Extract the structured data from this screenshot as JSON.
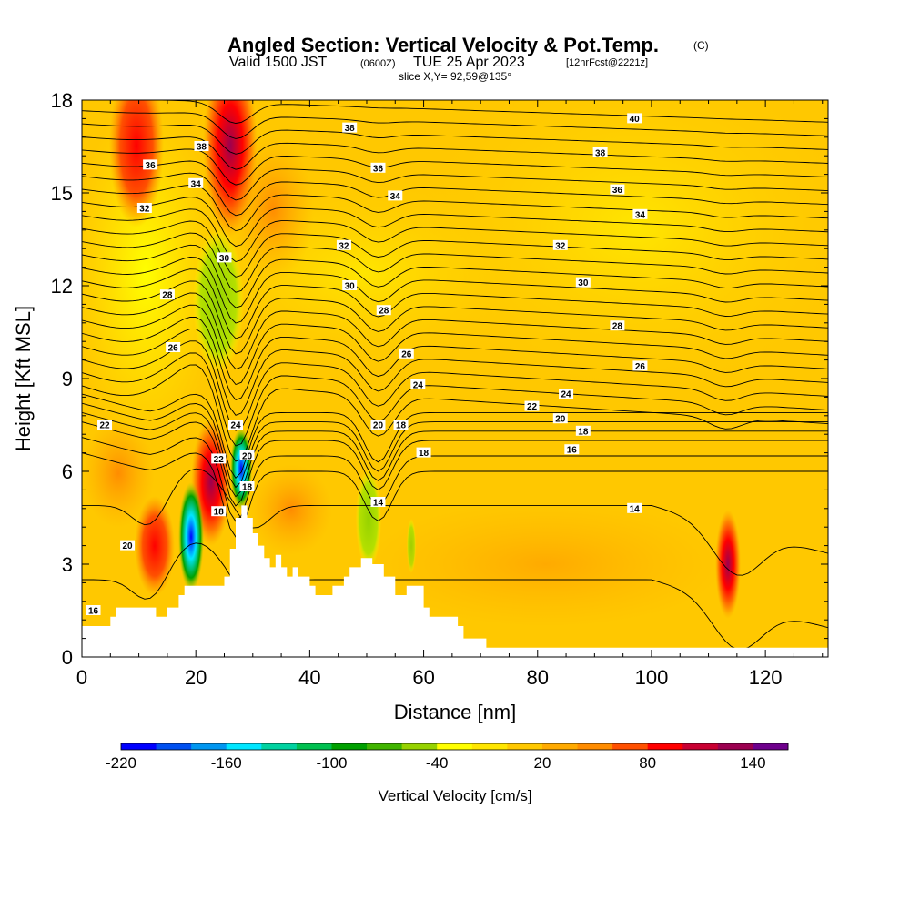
{
  "title": {
    "main": "Angled Section: Vertical Velocity & Pot.Temp.",
    "unit": "(C)",
    "valid_prefix": "Valid 1500 JST",
    "valid_utc": "(0600Z)",
    "valid_date": "TUE 25 Apr 2023",
    "forecast": "[12hrFcst@2221z]",
    "slice": "slice X,Y= 92,59@135°"
  },
  "colorbar": {
    "label": "Vertical Velocity [cm/s]",
    "min": -220,
    "max": 160,
    "step": 20,
    "tick_labels": [
      "-220",
      "-160",
      "-100",
      "-40",
      "20",
      "80",
      "140"
    ],
    "colors": [
      "#0000ff",
      "#0050f0",
      "#0096f0",
      "#00e6ff",
      "#00d2a0",
      "#00c050",
      "#00a000",
      "#40b400",
      "#96d200",
      "#ffff00",
      "#ffe600",
      "#ffc800",
      "#ffaa00",
      "#ff8c00",
      "#ff5000",
      "#ff0000",
      "#c80032",
      "#9b0050",
      "#6e008c"
    ]
  },
  "chart_data": {
    "type": "contour",
    "title": "Angled Section: Vertical Velocity & Pot.Temp.",
    "xlabel": "Distance [nm]",
    "ylabel": "Height [Kft MSL]",
    "xlim": [
      0,
      131
    ],
    "ylim": [
      0,
      18
    ],
    "x_ticks": [
      0,
      20,
      40,
      60,
      80,
      100,
      120
    ],
    "y_ticks": [
      0,
      3,
      6,
      9,
      12,
      15,
      18
    ],
    "terrain": [
      [
        0,
        1
      ],
      [
        5,
        1
      ],
      [
        5,
        1.3
      ],
      [
        6,
        1.3
      ],
      [
        6,
        1.6
      ],
      [
        13,
        1.6
      ],
      [
        13,
        1.3
      ],
      [
        15,
        1.3
      ],
      [
        15,
        1.6
      ],
      [
        17,
        1.6
      ],
      [
        17,
        2
      ],
      [
        18,
        2
      ],
      [
        18,
        2.3
      ],
      [
        25,
        2.3
      ],
      [
        25,
        2.6
      ],
      [
        26,
        2.6
      ],
      [
        26,
        3.5
      ],
      [
        27,
        3.5
      ],
      [
        27,
        4.5
      ],
      [
        28,
        4.5
      ],
      [
        28,
        4.9
      ],
      [
        29,
        4.9
      ],
      [
        29,
        4.5
      ],
      [
        30,
        4.5
      ],
      [
        30,
        4
      ],
      [
        31,
        4
      ],
      [
        31,
        3.6
      ],
      [
        32,
        3.6
      ],
      [
        32,
        3.2
      ],
      [
        33,
        3.2
      ],
      [
        33,
        2.9
      ],
      [
        34,
        2.9
      ],
      [
        34,
        3.3
      ],
      [
        35,
        3.3
      ],
      [
        35,
        2.9
      ],
      [
        36,
        2.9
      ],
      [
        36,
        2.6
      ],
      [
        37,
        2.6
      ],
      [
        37,
        2.9
      ],
      [
        38,
        2.9
      ],
      [
        38,
        2.6
      ],
      [
        40,
        2.6
      ],
      [
        40,
        2.3
      ],
      [
        41,
        2.3
      ],
      [
        41,
        2
      ],
      [
        44,
        2
      ],
      [
        44,
        2.3
      ],
      [
        46,
        2.3
      ],
      [
        46,
        2.6
      ],
      [
        47,
        2.6
      ],
      [
        47,
        2.9
      ],
      [
        49,
        2.9
      ],
      [
        49,
        3.2
      ],
      [
        51,
        3.2
      ],
      [
        51,
        3
      ],
      [
        53,
        3
      ],
      [
        53,
        2.6
      ],
      [
        55,
        2.6
      ],
      [
        55,
        2
      ],
      [
        57,
        2
      ],
      [
        57,
        2.3
      ],
      [
        60,
        2.3
      ],
      [
        60,
        1.6
      ],
      [
        61,
        1.6
      ],
      [
        61,
        1.3
      ],
      [
        66,
        1.3
      ],
      [
        66,
        1
      ],
      [
        67,
        1
      ],
      [
        67,
        0.6
      ],
      [
        71,
        0.6
      ],
      [
        71,
        0.3
      ],
      [
        131,
        0.3
      ],
      [
        131,
        0
      ]
    ],
    "pot_temp_contours": [
      {
        "level": "16",
        "labels": [
          {
            "x": 2,
            "y": 1.5
          }
        ]
      },
      {
        "level": "18",
        "labels": [
          {
            "x": 24,
            "y": 4.7
          },
          {
            "x": 29,
            "y": 5.5
          },
          {
            "x": 56,
            "y": 7.5
          },
          {
            "x": 60,
            "y": 6.6
          }
        ]
      },
      {
        "level": "14",
        "labels": [
          {
            "x": 52,
            "y": 5.0
          },
          {
            "x": 97,
            "y": 4.8
          }
        ]
      },
      {
        "level": "16",
        "labels": [
          {
            "x": 86,
            "y": 6.7
          }
        ]
      },
      {
        "level": "20",
        "labels": [
          {
            "x": 8,
            "y": 3.6
          },
          {
            "x": 29,
            "y": 6.5
          },
          {
            "x": 52,
            "y": 7.5
          },
          {
            "x": 84,
            "y": 7.7
          }
        ]
      },
      {
        "level": "18",
        "labels": [
          {
            "x": 88,
            "y": 7.3
          }
        ]
      },
      {
        "level": "22",
        "labels": [
          {
            "x": 4,
            "y": 7.5
          },
          {
            "x": 24,
            "y": 6.4
          },
          {
            "x": 79,
            "y": 8.1
          }
        ]
      },
      {
        "level": "24",
        "labels": [
          {
            "x": 27,
            "y": 7.5
          },
          {
            "x": 59,
            "y": 8.8
          },
          {
            "x": 85,
            "y": 8.5
          }
        ]
      },
      {
        "level": "26",
        "labels": [
          {
            "x": 16,
            "y": 10.0
          },
          {
            "x": 57,
            "y": 9.8
          },
          {
            "x": 98,
            "y": 9.4
          }
        ]
      },
      {
        "level": "28",
        "labels": [
          {
            "x": 15,
            "y": 11.7
          },
          {
            "x": 53,
            "y": 11.2
          },
          {
            "x": 94,
            "y": 10.7
          }
        ]
      },
      {
        "level": "30",
        "labels": [
          {
            "x": 25,
            "y": 12.9
          },
          {
            "x": 47,
            "y": 12.0
          },
          {
            "x": 88,
            "y": 12.1
          }
        ]
      },
      {
        "level": "32",
        "labels": [
          {
            "x": 11,
            "y": 14.5
          },
          {
            "x": 46,
            "y": 13.3
          },
          {
            "x": 84,
            "y": 13.3
          }
        ]
      },
      {
        "level": "34",
        "labels": [
          {
            "x": 20,
            "y": 15.3
          },
          {
            "x": 55,
            "y": 14.9
          },
          {
            "x": 98,
            "y": 14.3
          }
        ]
      },
      {
        "level": "36",
        "labels": [
          {
            "x": 12,
            "y": 15.9
          },
          {
            "x": 52,
            "y": 15.8
          },
          {
            "x": 94,
            "y": 15.1
          }
        ]
      },
      {
        "level": "38",
        "labels": [
          {
            "x": 21,
            "y": 16.5
          },
          {
            "x": 47,
            "y": 17.1
          },
          {
            "x": 91,
            "y": 16.3
          }
        ]
      },
      {
        "level": "40",
        "labels": [
          {
            "x": 97,
            "y": 17.4
          }
        ]
      }
    ],
    "velocity_features": [
      {
        "x": 0.3,
        "z": 4.2,
        "value": -20
      },
      {
        "x": 26,
        "z": 15.5,
        "value": 100
      },
      {
        "x": 26,
        "z": 17.5,
        "value": 120
      },
      {
        "x": 24,
        "z": 13,
        "value": -60
      },
      {
        "x": 12,
        "z": 17,
        "value": 60
      },
      {
        "x": 13,
        "z": 3.5,
        "value": 80
      },
      {
        "x": 23,
        "z": 6,
        "value": 120
      },
      {
        "x": 28.5,
        "z": 6,
        "value": -200
      },
      {
        "x": 20,
        "z": 3,
        "value": -100
      },
      {
        "x": 51,
        "z": 5.5,
        "value": -50
      },
      {
        "x": 115,
        "z": 3,
        "value": 90
      }
    ]
  }
}
